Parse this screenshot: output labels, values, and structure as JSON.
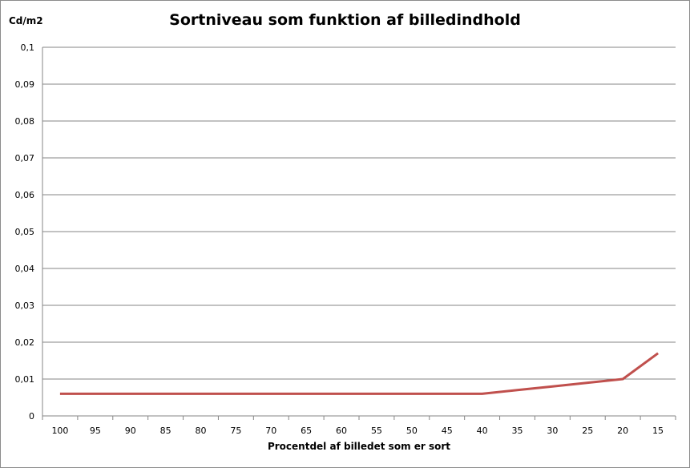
{
  "chart_data": {
    "type": "line",
    "title": "Sortniveau som funktion af billedindhold",
    "xlabel": "Procentdel af billedet som er sort",
    "ylabel": "Cd/m2",
    "categories": [
      "100",
      "95",
      "90",
      "85",
      "80",
      "75",
      "70",
      "65",
      "60",
      "55",
      "50",
      "45",
      "40",
      "35",
      "30",
      "25",
      "20",
      "15"
    ],
    "y_ticks": [
      "0",
      "0,01",
      "0,02",
      "0,03",
      "0,04",
      "0,05",
      "0,06",
      "0,07",
      "0,08",
      "0,09",
      "0,1"
    ],
    "ylim": [
      0,
      0.1
    ],
    "grid": true,
    "series": [
      {
        "values": [
          0.006,
          0.006,
          0.006,
          0.006,
          0.006,
          0.006,
          0.006,
          0.006,
          0.006,
          0.006,
          0.006,
          0.006,
          0.006,
          0.007,
          0.008,
          0.009,
          0.01,
          0.017
        ],
        "color": "#c0504d"
      }
    ]
  }
}
